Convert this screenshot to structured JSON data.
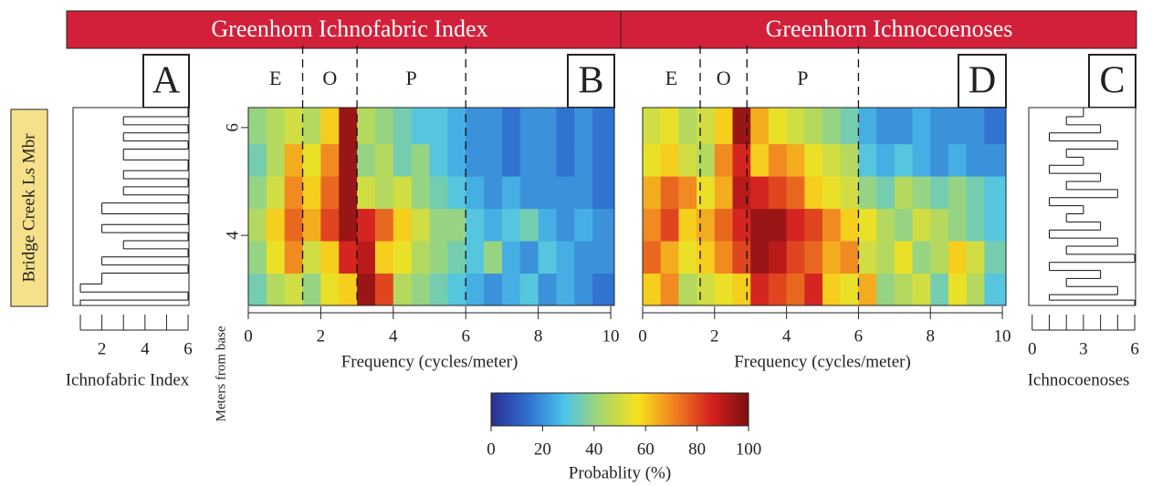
{
  "headers": [
    "Greenhorn Ichnofabric Index",
    "Greenhorn Ichnocoenoses"
  ],
  "formation": "Bridge Creek Ls Mbr",
  "y_axis_title": "Meters from base",
  "ylim": [
    2.7,
    6.37
  ],
  "yticks": [
    4,
    6
  ],
  "colorbar": {
    "label": "Probablity (%)",
    "lim": [
      0,
      100
    ],
    "ticks": [
      0,
      20,
      40,
      60,
      80,
      100
    ],
    "colormap": [
      "#2b2f8f",
      "#2f6fd0",
      "#4cc4ea",
      "#a8d86a",
      "#f7e11c",
      "#f08020",
      "#d42020",
      "#7a1010"
    ]
  },
  "chart_data": [
    {
      "type": "step",
      "panel": "A",
      "xlabel": "Ichnofabric Index",
      "xlim": [
        0.66,
        6.04
      ],
      "xticks": [
        2,
        4,
        6
      ],
      "xminorticks": [
        1,
        3,
        5
      ],
      "color": "#111",
      "ybins": [
        2.7,
        2.8,
        2.95,
        3.1,
        3.3,
        3.45,
        3.6,
        3.75,
        3.9,
        4.05,
        4.2,
        4.4,
        4.6,
        4.75,
        4.9,
        5.05,
        5.2,
        5.4,
        5.6,
        5.75,
        5.9,
        6.05,
        6.2,
        6.37
      ],
      "values": [
        1,
        6,
        1,
        2,
        6,
        2,
        6,
        3,
        6,
        2,
        6,
        2,
        6,
        3,
        6,
        3,
        6,
        3,
        6,
        3,
        6,
        3,
        6
      ]
    },
    {
      "type": "heatmap",
      "panel": "B",
      "xlabel": "Frequency (cycles/meter)",
      "xlim": [
        0,
        10.1
      ],
      "xticks": [
        0,
        2,
        4,
        6,
        8,
        10
      ],
      "zone_labels": [
        "E",
        "O",
        "P"
      ],
      "zone_bounds": [
        1.5,
        3.0,
        6.0
      ],
      "xbins": [
        0,
        0.5,
        1,
        1.5,
        2,
        2.5,
        3,
        3.5,
        4,
        4.5,
        5,
        5.5,
        6,
        6.5,
        7,
        7.5,
        8,
        8.5,
        9,
        9.5,
        10.1
      ],
      "ybins": [
        2.7,
        3.3,
        3.9,
        4.5,
        5.1,
        5.7,
        6.37
      ],
      "z": [
        [
          35,
          45,
          50,
          40,
          55,
          60,
          95,
          80,
          45,
          40,
          35,
          30,
          25,
          20,
          25,
          30,
          20,
          25,
          20,
          15
        ],
        [
          40,
          55,
          70,
          50,
          60,
          85,
          90,
          60,
          55,
          45,
          40,
          35,
          30,
          40,
          25,
          20,
          30,
          25,
          20,
          20
        ],
        [
          45,
          60,
          75,
          65,
          80,
          95,
          85,
          75,
          60,
          50,
          40,
          40,
          30,
          25,
          30,
          35,
          25,
          20,
          25,
          20
        ],
        [
          40,
          50,
          70,
          60,
          75,
          95,
          50,
          45,
          50,
          40,
          35,
          30,
          25,
          20,
          25,
          20,
          20,
          20,
          20,
          15
        ],
        [
          35,
          45,
          65,
          55,
          70,
          95,
          40,
          45,
          35,
          40,
          30,
          25,
          20,
          20,
          15,
          20,
          20,
          15,
          20,
          15
        ],
        [
          40,
          45,
          50,
          45,
          60,
          95,
          45,
          40,
          35,
          30,
          30,
          25,
          20,
          20,
          15,
          20,
          20,
          15,
          20,
          15
        ]
      ]
    },
    {
      "type": "heatmap",
      "panel": "D",
      "xlabel": "Frequency (cycles/meter)",
      "xlim": [
        0,
        10.1
      ],
      "xticks": [
        0,
        2,
        4,
        6,
        8,
        10
      ],
      "zone_labels": [
        "E",
        "O",
        "P"
      ],
      "zone_bounds": [
        1.6,
        2.9,
        6.0
      ],
      "xbins": [
        0,
        0.5,
        1,
        1.5,
        2,
        2.5,
        3,
        3.5,
        4,
        4.5,
        5,
        5.5,
        6,
        6.5,
        7,
        7.5,
        8,
        8.5,
        9,
        9.5,
        10.1
      ],
      "ybins": [
        2.7,
        3.3,
        3.9,
        4.5,
        5.1,
        5.7,
        6.37
      ],
      "z": [
        [
          60,
          70,
          45,
          50,
          55,
          60,
          85,
          80,
          75,
          85,
          60,
          55,
          65,
          40,
          45,
          50,
          35,
          55,
          45,
          30
        ],
        [
          75,
          65,
          55,
          60,
          70,
          80,
          95,
          90,
          80,
          75,
          65,
          70,
          50,
          45,
          55,
          40,
          45,
          60,
          50,
          35
        ],
        [
          70,
          80,
          60,
          65,
          75,
          85,
          95,
          95,
          85,
          80,
          70,
          60,
          55,
          45,
          40,
          50,
          45,
          40,
          35,
          30
        ],
        [
          65,
          75,
          70,
          55,
          65,
          90,
          85,
          80,
          75,
          60,
          55,
          50,
          40,
          35,
          45,
          40,
          35,
          40,
          35,
          30
        ],
        [
          55,
          60,
          50,
          45,
          70,
          85,
          60,
          70,
          65,
          55,
          50,
          45,
          30,
          25,
          30,
          25,
          20,
          25,
          20,
          20
        ],
        [
          50,
          55,
          45,
          50,
          60,
          95,
          65,
          55,
          50,
          45,
          40,
          35,
          25,
          20,
          20,
          25,
          20,
          20,
          20,
          15
        ]
      ]
    },
    {
      "type": "step",
      "panel": "C",
      "xlabel": "Ichnocoenoses",
      "xlim": [
        -0.2,
        6.05
      ],
      "xticks": [
        0,
        3,
        6
      ],
      "xminorticks": [
        1,
        2,
        4,
        5
      ],
      "color": "#111",
      "ybins": [
        2.7,
        2.8,
        2.9,
        3.05,
        3.2,
        3.35,
        3.5,
        3.65,
        3.8,
        3.95,
        4.1,
        4.25,
        4.4,
        4.55,
        4.7,
        4.85,
        5.0,
        5.15,
        5.3,
        5.45,
        5.6,
        5.75,
        5.9,
        6.05,
        6.2,
        6.37
      ],
      "values": [
        6,
        1,
        5,
        2,
        4,
        1,
        6,
        2,
        5,
        1,
        4,
        2,
        3,
        1,
        5,
        2,
        4,
        1,
        3,
        2,
        5,
        1,
        4,
        2,
        3
      ]
    }
  ]
}
